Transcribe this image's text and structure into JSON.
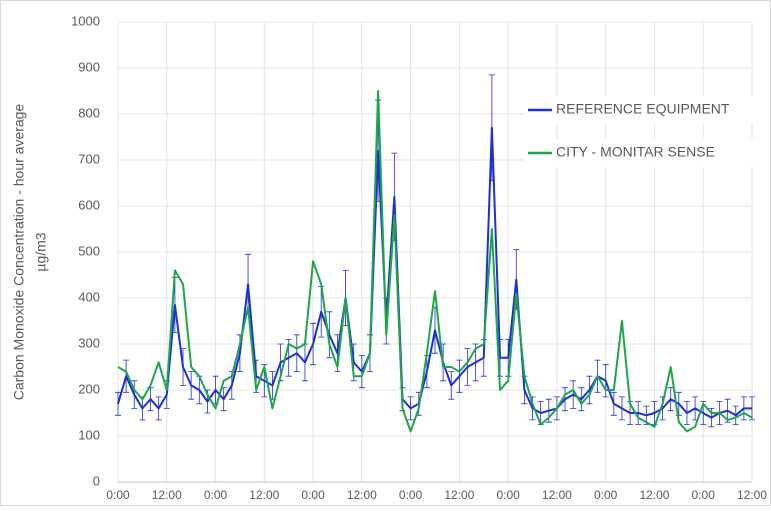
{
  "chart_data": {
    "type": "line",
    "ylabel": [
      "Carbon Monoxide Concentration - hour average",
      "µg/m3"
    ],
    "categories": [
      "0:00",
      null,
      null,
      null,
      null,
      null,
      "12:00",
      null,
      null,
      null,
      null,
      null,
      "0:00",
      null,
      null,
      null,
      null,
      null,
      "12:00",
      null,
      null,
      null,
      null,
      null,
      "0:00",
      null,
      null,
      null,
      null,
      null,
      "12:00",
      null,
      null,
      null,
      null,
      null,
      "0:00",
      null,
      null,
      null,
      null,
      null,
      "12:00",
      null,
      null,
      null,
      null,
      null,
      "0:00",
      null,
      null,
      null,
      null,
      null,
      "12:00",
      null,
      null,
      null,
      null,
      null,
      "0:00",
      null,
      null,
      null,
      null,
      null,
      "12:00",
      null,
      null,
      null,
      null,
      null,
      "0:00",
      null,
      null,
      null,
      null,
      null,
      "12:00"
    ],
    "series": [
      {
        "name": "REFERENCE EQUIPMENT",
        "color": "#1f2fd6",
        "values": [
          170,
          230,
          190,
          160,
          180,
          160,
          190,
          385,
          250,
          210,
          200,
          175,
          200,
          180,
          210,
          280,
          430,
          230,
          220,
          210,
          260,
          270,
          280,
          260,
          300,
          370,
          320,
          280,
          400,
          260,
          240,
          280,
          720,
          350,
          620,
          180,
          160,
          170,
          240,
          330,
          260,
          210,
          230,
          250,
          260,
          270,
          770,
          270,
          270,
          440,
          200,
          160,
          150,
          155,
          160,
          180,
          190,
          180,
          200,
          230,
          220,
          170,
          160,
          150,
          150,
          145,
          150,
          160,
          180,
          170,
          150,
          160,
          150,
          140,
          150,
          155,
          145,
          160,
          160
        ],
        "errors": [
          25,
          35,
          30,
          25,
          25,
          25,
          30,
          60,
          40,
          30,
          30,
          25,
          30,
          25,
          30,
          40,
          65,
          35,
          35,
          30,
          40,
          40,
          40,
          40,
          45,
          55,
          50,
          40,
          60,
          40,
          35,
          40,
          110,
          50,
          95,
          25,
          25,
          25,
          35,
          50,
          40,
          30,
          35,
          40,
          40,
          40,
          115,
          40,
          40,
          65,
          30,
          25,
          25,
          25,
          25,
          25,
          30,
          25,
          30,
          35,
          35,
          25,
          25,
          25,
          25,
          20,
          25,
          25,
          25,
          25,
          25,
          25,
          25,
          20,
          25,
          25,
          20,
          25,
          25
        ]
      },
      {
        "name": "CITY - MONITAR SENSE",
        "color": "#1fa64a",
        "values": [
          250,
          240,
          200,
          180,
          210,
          260,
          200,
          460,
          430,
          250,
          230,
          190,
          160,
          220,
          230,
          300,
          380,
          200,
          250,
          160,
          230,
          300,
          290,
          300,
          480,
          430,
          300,
          250,
          400,
          230,
          230,
          280,
          850,
          320,
          580,
          160,
          110,
          160,
          280,
          415,
          250,
          250,
          240,
          260,
          290,
          300,
          550,
          200,
          220,
          410,
          230,
          170,
          125,
          140,
          160,
          190,
          200,
          170,
          190,
          230,
          200,
          200,
          350,
          170,
          140,
          130,
          120,
          170,
          250,
          130,
          110,
          120,
          170,
          150,
          150,
          135,
          140,
          150,
          140
        ]
      }
    ],
    "ylim": [
      0,
      1000
    ],
    "yticks": [
      0,
      100,
      200,
      300,
      400,
      500,
      600,
      700,
      800,
      900,
      1000
    ],
    "grid": true,
    "legend": "upper right"
  }
}
